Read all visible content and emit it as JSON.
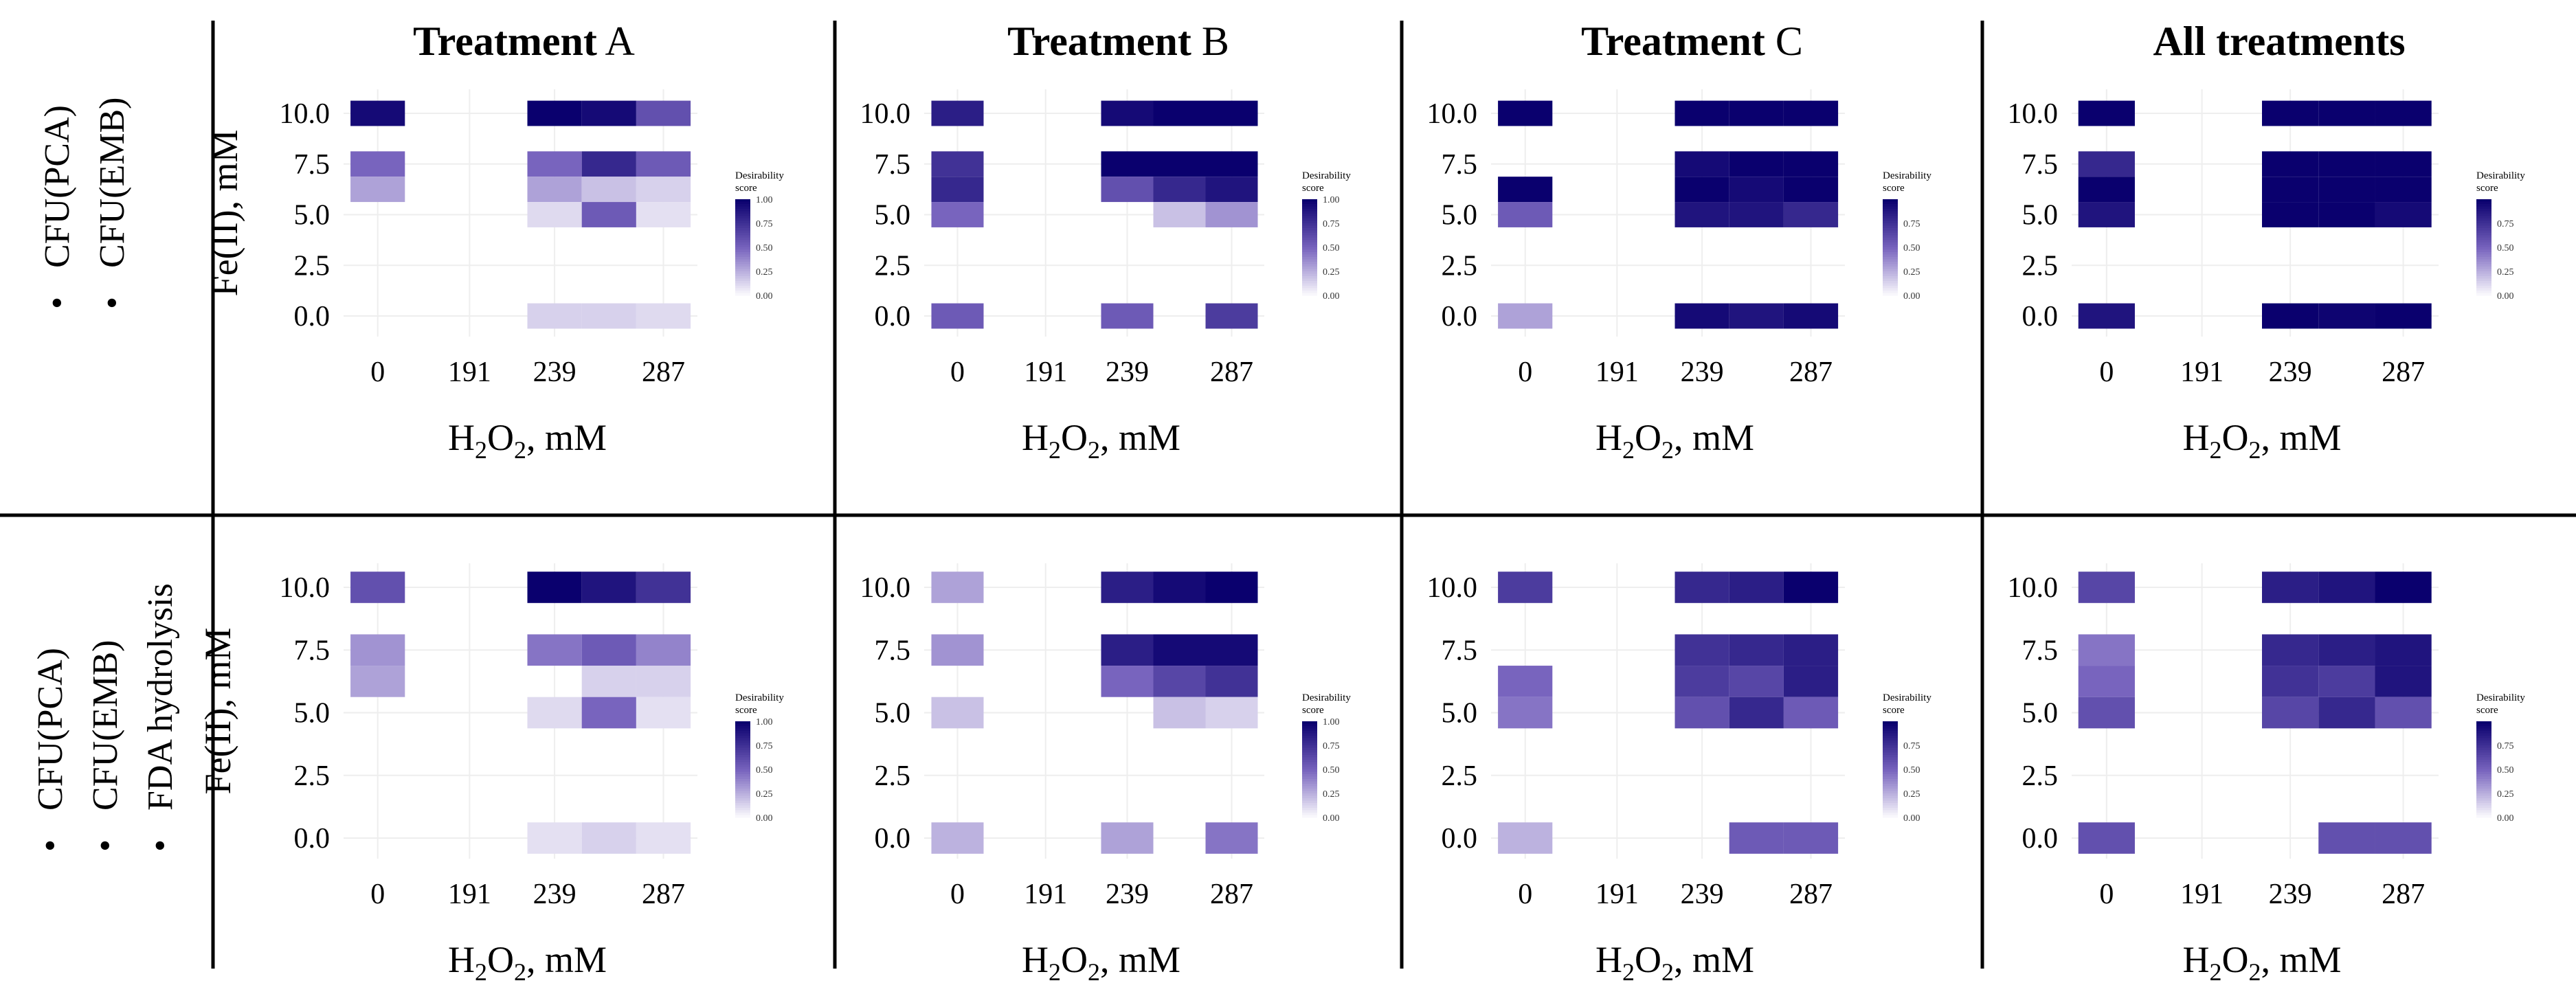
{
  "figure": {
    "rows": [
      {
        "id": "row1",
        "bullets": [
          "CFU(PCA)",
          "CFU(EMB)"
        ]
      },
      {
        "id": "row2",
        "bullets": [
          "CFU(PCA)",
          "CFU(EMB)",
          "FDA hydrolysis"
        ]
      }
    ],
    "bullet_char": "•",
    "columns": [
      {
        "title_bold": "Treatment",
        "title_rest": " A"
      },
      {
        "title_bold": "Treatment",
        "title_rest": " B"
      },
      {
        "title_bold": "Treatment",
        "title_rest": " C"
      },
      {
        "title_bold": "All treatments",
        "title_rest": ""
      }
    ],
    "ylabel": "Fe(II), mM",
    "xlabel_main": "H",
    "xlabel_sub": "2",
    "xlabel_tail": "O",
    "xlabel_sub2": "2",
    "xlabel_unit": ", mM",
    "legend_title_1": "Desirability",
    "legend_title_2": "score",
    "colors": {
      "low": "#ffffff",
      "high": "#0a006e",
      "grid": "#eeeeee",
      "divider": "#000000"
    }
  },
  "chart_data": [
    {
      "type": "heatmap",
      "panel": "row1-A",
      "title": "Treatment A",
      "xlabel": "H2O2, mM",
      "ylabel": "Fe(II), mM",
      "x_ticks": [
        "0",
        "191",
        "239",
        "287"
      ],
      "y_ticks": [
        "0.0",
        "2.5",
        "5.0",
        "7.5",
        "10.0"
      ],
      "legend": {
        "title": "Desirability score",
        "ticks": [
          "0.00",
          "0.25",
          "0.50",
          "0.75",
          "1.00"
        ],
        "range": [
          0,
          1
        ]
      },
      "cells": [
        {
          "x": 0,
          "y": 10.0,
          "v": 0.95
        },
        {
          "x": 0,
          "y": 7.5,
          "v": 0.5
        },
        {
          "x": 0,
          "y": 6.25,
          "v": 0.3
        },
        {
          "x": 239,
          "y": 10.0,
          "v": 1.0
        },
        {
          "x": 263,
          "y": 10.0,
          "v": 0.95
        },
        {
          "x": 287,
          "y": 10.0,
          "v": 0.6
        },
        {
          "x": 239,
          "y": 7.5,
          "v": 0.5
        },
        {
          "x": 263,
          "y": 7.5,
          "v": 0.8
        },
        {
          "x": 287,
          "y": 7.5,
          "v": 0.55
        },
        {
          "x": 239,
          "y": 6.25,
          "v": 0.3
        },
        {
          "x": 263,
          "y": 6.25,
          "v": 0.2
        },
        {
          "x": 287,
          "y": 6.25,
          "v": 0.15
        },
        {
          "x": 239,
          "y": 5.0,
          "v": 0.12
        },
        {
          "x": 263,
          "y": 5.0,
          "v": 0.55
        },
        {
          "x": 287,
          "y": 5.0,
          "v": 0.1
        },
        {
          "x": 239,
          "y": 0.0,
          "v": 0.15
        },
        {
          "x": 263,
          "y": 0.0,
          "v": 0.15
        },
        {
          "x": 287,
          "y": 0.0,
          "v": 0.12
        }
      ]
    },
    {
      "type": "heatmap",
      "panel": "row1-B",
      "title": "Treatment B",
      "xlabel": "H2O2, mM",
      "ylabel": "Fe(II), mM",
      "x_ticks": [
        "0",
        "191",
        "239",
        "287"
      ],
      "y_ticks": [
        "0.0",
        "2.5",
        "5.0",
        "7.5",
        "10.0"
      ],
      "legend": {
        "title": "Desirability score",
        "ticks": [
          "0.00",
          "0.25",
          "0.50",
          "0.75",
          "1.00"
        ],
        "range": [
          0,
          1
        ]
      },
      "cells": [
        {
          "x": 0,
          "y": 10.0,
          "v": 0.85
        },
        {
          "x": 0,
          "y": 7.5,
          "v": 0.75
        },
        {
          "x": 0,
          "y": 6.25,
          "v": 0.8
        },
        {
          "x": 0,
          "y": 5.0,
          "v": 0.5
        },
        {
          "x": 239,
          "y": 10.0,
          "v": 0.95
        },
        {
          "x": 263,
          "y": 10.0,
          "v": 1.0
        },
        {
          "x": 287,
          "y": 10.0,
          "v": 1.0
        },
        {
          "x": 239,
          "y": 7.5,
          "v": 1.0
        },
        {
          "x": 263,
          "y": 7.5,
          "v": 1.0
        },
        {
          "x": 287,
          "y": 7.5,
          "v": 1.0
        },
        {
          "x": 239,
          "y": 6.25,
          "v": 0.6
        },
        {
          "x": 263,
          "y": 6.25,
          "v": 0.8
        },
        {
          "x": 287,
          "y": 6.25,
          "v": 0.9
        },
        {
          "x": 263,
          "y": 5.0,
          "v": 0.2
        },
        {
          "x": 287,
          "y": 5.0,
          "v": 0.35
        },
        {
          "x": 0,
          "y": 0.0,
          "v": 0.55
        },
        {
          "x": 239,
          "y": 0.0,
          "v": 0.55
        },
        {
          "x": 287,
          "y": 0.0,
          "v": 0.7
        }
      ]
    },
    {
      "type": "heatmap",
      "panel": "row1-C",
      "title": "Treatment C",
      "xlabel": "H2O2, mM",
      "ylabel": "Fe(II), mM",
      "x_ticks": [
        "0",
        "191",
        "239",
        "287"
      ],
      "y_ticks": [
        "0.0",
        "2.5",
        "5.0",
        "7.5",
        "10.0"
      ],
      "legend": {
        "title": "Desirability score",
        "ticks": [
          "0.00",
          "0.25",
          "0.50",
          "0.75"
        ],
        "range": [
          0,
          1
        ]
      },
      "cells": [
        {
          "x": 0,
          "y": 10.0,
          "v": 1.0
        },
        {
          "x": 0,
          "y": 6.25,
          "v": 1.0
        },
        {
          "x": 0,
          "y": 5.0,
          "v": 0.55
        },
        {
          "x": 239,
          "y": 10.0,
          "v": 1.0
        },
        {
          "x": 263,
          "y": 10.0,
          "v": 1.0
        },
        {
          "x": 287,
          "y": 10.0,
          "v": 1.0
        },
        {
          "x": 239,
          "y": 7.5,
          "v": 0.95
        },
        {
          "x": 263,
          "y": 7.5,
          "v": 1.0
        },
        {
          "x": 287,
          "y": 7.5,
          "v": 1.0
        },
        {
          "x": 239,
          "y": 6.25,
          "v": 1.0
        },
        {
          "x": 263,
          "y": 6.25,
          "v": 0.95
        },
        {
          "x": 287,
          "y": 6.25,
          "v": 1.0
        },
        {
          "x": 239,
          "y": 5.0,
          "v": 0.9
        },
        {
          "x": 263,
          "y": 5.0,
          "v": 0.9
        },
        {
          "x": 287,
          "y": 5.0,
          "v": 0.8
        },
        {
          "x": 0,
          "y": 0.0,
          "v": 0.3
        },
        {
          "x": 239,
          "y": 0.0,
          "v": 0.95
        },
        {
          "x": 263,
          "y": 0.0,
          "v": 0.9
        },
        {
          "x": 287,
          "y": 0.0,
          "v": 0.95
        }
      ]
    },
    {
      "type": "heatmap",
      "panel": "row1-All",
      "title": "All treatments",
      "xlabel": "H2O2, mM",
      "ylabel": "Fe(II), mM",
      "x_ticks": [
        "0",
        "191",
        "239",
        "287"
      ],
      "y_ticks": [
        "0.0",
        "2.5",
        "5.0",
        "7.5",
        "10.0"
      ],
      "legend": {
        "title": "Desirability score",
        "ticks": [
          "0.00",
          "0.25",
          "0.50",
          "0.75"
        ],
        "range": [
          0,
          1
        ]
      },
      "cells": [
        {
          "x": 0,
          "y": 10.0,
          "v": 1.0
        },
        {
          "x": 0,
          "y": 7.5,
          "v": 0.8
        },
        {
          "x": 0,
          "y": 6.25,
          "v": 1.0
        },
        {
          "x": 0,
          "y": 5.0,
          "v": 0.9
        },
        {
          "x": 239,
          "y": 10.0,
          "v": 1.0
        },
        {
          "x": 263,
          "y": 10.0,
          "v": 1.0
        },
        {
          "x": 287,
          "y": 10.0,
          "v": 1.0
        },
        {
          "x": 239,
          "y": 7.5,
          "v": 1.0
        },
        {
          "x": 263,
          "y": 7.5,
          "v": 1.0
        },
        {
          "x": 287,
          "y": 7.5,
          "v": 1.0
        },
        {
          "x": 239,
          "y": 6.25,
          "v": 1.0
        },
        {
          "x": 263,
          "y": 6.25,
          "v": 1.0
        },
        {
          "x": 287,
          "y": 6.25,
          "v": 1.0
        },
        {
          "x": 239,
          "y": 5.0,
          "v": 1.0
        },
        {
          "x": 263,
          "y": 5.0,
          "v": 1.0
        },
        {
          "x": 287,
          "y": 5.0,
          "v": 0.95
        },
        {
          "x": 0,
          "y": 0.0,
          "v": 0.9
        },
        {
          "x": 239,
          "y": 0.0,
          "v": 1.0
        },
        {
          "x": 263,
          "y": 0.0,
          "v": 0.98
        },
        {
          "x": 287,
          "y": 0.0,
          "v": 1.0
        }
      ]
    },
    {
      "type": "heatmap",
      "panel": "row2-A",
      "title": "Treatment A",
      "xlabel": "H2O2, mM",
      "ylabel": "Fe(II), mM",
      "x_ticks": [
        "0",
        "191",
        "239",
        "287"
      ],
      "y_ticks": [
        "0.0",
        "2.5",
        "5.0",
        "7.5",
        "10.0"
      ],
      "legend": {
        "title": "Desirability score",
        "ticks": [
          "0.00",
          "0.25",
          "0.50",
          "0.75",
          "1.00"
        ],
        "range": [
          0,
          1
        ]
      },
      "cells": [
        {
          "x": 0,
          "y": 10.0,
          "v": 0.6
        },
        {
          "x": 0,
          "y": 7.5,
          "v": 0.35
        },
        {
          "x": 0,
          "y": 6.25,
          "v": 0.3
        },
        {
          "x": 239,
          "y": 10.0,
          "v": 1.0
        },
        {
          "x": 263,
          "y": 10.0,
          "v": 0.9
        },
        {
          "x": 287,
          "y": 10.0,
          "v": 0.75
        },
        {
          "x": 239,
          "y": 7.5,
          "v": 0.45
        },
        {
          "x": 263,
          "y": 7.5,
          "v": 0.55
        },
        {
          "x": 287,
          "y": 7.5,
          "v": 0.4
        },
        {
          "x": 263,
          "y": 6.25,
          "v": 0.15
        },
        {
          "x": 287,
          "y": 6.25,
          "v": 0.15
        },
        {
          "x": 239,
          "y": 5.0,
          "v": 0.12
        },
        {
          "x": 263,
          "y": 5.0,
          "v": 0.5
        },
        {
          "x": 287,
          "y": 5.0,
          "v": 0.1
        },
        {
          "x": 239,
          "y": 0.0,
          "v": 0.1
        },
        {
          "x": 263,
          "y": 0.0,
          "v": 0.15
        },
        {
          "x": 287,
          "y": 0.0,
          "v": 0.1
        }
      ]
    },
    {
      "type": "heatmap",
      "panel": "row2-B",
      "title": "Treatment B",
      "xlabel": "H2O2, mM",
      "ylabel": "Fe(II), mM",
      "x_ticks": [
        "0",
        "191",
        "239",
        "287"
      ],
      "y_ticks": [
        "0.0",
        "2.5",
        "5.0",
        "7.5",
        "10.0"
      ],
      "legend": {
        "title": "Desirability score",
        "ticks": [
          "0.00",
          "0.25",
          "0.50",
          "0.75",
          "1.00"
        ],
        "range": [
          0,
          1
        ]
      },
      "cells": [
        {
          "x": 0,
          "y": 10.0,
          "v": 0.3
        },
        {
          "x": 0,
          "y": 7.5,
          "v": 0.35
        },
        {
          "x": 0,
          "y": 5.0,
          "v": 0.2
        },
        {
          "x": 239,
          "y": 10.0,
          "v": 0.85
        },
        {
          "x": 263,
          "y": 10.0,
          "v": 0.95
        },
        {
          "x": 287,
          "y": 10.0,
          "v": 1.0
        },
        {
          "x": 239,
          "y": 7.5,
          "v": 0.85
        },
        {
          "x": 263,
          "y": 7.5,
          "v": 0.95
        },
        {
          "x": 287,
          "y": 7.5,
          "v": 0.95
        },
        {
          "x": 239,
          "y": 6.25,
          "v": 0.5
        },
        {
          "x": 263,
          "y": 6.25,
          "v": 0.65
        },
        {
          "x": 287,
          "y": 6.25,
          "v": 0.75
        },
        {
          "x": 263,
          "y": 5.0,
          "v": 0.2
        },
        {
          "x": 287,
          "y": 5.0,
          "v": 0.15
        },
        {
          "x": 0,
          "y": 0.0,
          "v": 0.25
        },
        {
          "x": 239,
          "y": 0.0,
          "v": 0.3
        },
        {
          "x": 287,
          "y": 0.0,
          "v": 0.45
        }
      ]
    },
    {
      "type": "heatmap",
      "panel": "row2-C",
      "title": "Treatment C",
      "xlabel": "H2O2, mM",
      "ylabel": "Fe(II), mM",
      "x_ticks": [
        "0",
        "191",
        "239",
        "287"
      ],
      "y_ticks": [
        "0.0",
        "2.5",
        "5.0",
        "7.5",
        "10.0"
      ],
      "legend": {
        "title": "Desirability score",
        "ticks": [
          "0.00",
          "0.25",
          "0.50",
          "0.75"
        ],
        "range": [
          0,
          1
        ]
      },
      "cells": [
        {
          "x": 0,
          "y": 10.0,
          "v": 0.7
        },
        {
          "x": 0,
          "y": 6.25,
          "v": 0.5
        },
        {
          "x": 0,
          "y": 5.0,
          "v": 0.45
        },
        {
          "x": 239,
          "y": 10.0,
          "v": 0.8
        },
        {
          "x": 263,
          "y": 10.0,
          "v": 0.85
        },
        {
          "x": 287,
          "y": 10.0,
          "v": 1.0
        },
        {
          "x": 239,
          "y": 7.5,
          "v": 0.75
        },
        {
          "x": 263,
          "y": 7.5,
          "v": 0.8
        },
        {
          "x": 287,
          "y": 7.5,
          "v": 0.85
        },
        {
          "x": 239,
          "y": 6.25,
          "v": 0.7
        },
        {
          "x": 263,
          "y": 6.25,
          "v": 0.65
        },
        {
          "x": 287,
          "y": 6.25,
          "v": 0.85
        },
        {
          "x": 239,
          "y": 5.0,
          "v": 0.6
        },
        {
          "x": 263,
          "y": 5.0,
          "v": 0.8
        },
        {
          "x": 287,
          "y": 5.0,
          "v": 0.55
        },
        {
          "x": 0,
          "y": 0.0,
          "v": 0.25
        },
        {
          "x": 263,
          "y": 0.0,
          "v": 0.55
        },
        {
          "x": 287,
          "y": 0.0,
          "v": 0.55
        }
      ]
    },
    {
      "type": "heatmap",
      "panel": "row2-All",
      "title": "All treatments",
      "xlabel": "H2O2, mM",
      "ylabel": "Fe(II), mM",
      "x_ticks": [
        "0",
        "191",
        "239",
        "287"
      ],
      "y_ticks": [
        "0.0",
        "2.5",
        "5.0",
        "7.5",
        "10.0"
      ],
      "legend": {
        "title": "Desirability score",
        "ticks": [
          "0.00",
          "0.25",
          "0.50",
          "0.75"
        ],
        "range": [
          0,
          1
        ]
      },
      "cells": [
        {
          "x": 0,
          "y": 10.0,
          "v": 0.65
        },
        {
          "x": 0,
          "y": 7.5,
          "v": 0.45
        },
        {
          "x": 0,
          "y": 6.25,
          "v": 0.5
        },
        {
          "x": 0,
          "y": 5.0,
          "v": 0.6
        },
        {
          "x": 239,
          "y": 10.0,
          "v": 0.85
        },
        {
          "x": 263,
          "y": 10.0,
          "v": 0.9
        },
        {
          "x": 287,
          "y": 10.0,
          "v": 1.0
        },
        {
          "x": 239,
          "y": 7.5,
          "v": 0.8
        },
        {
          "x": 263,
          "y": 7.5,
          "v": 0.85
        },
        {
          "x": 287,
          "y": 7.5,
          "v": 0.9
        },
        {
          "x": 239,
          "y": 6.25,
          "v": 0.75
        },
        {
          "x": 263,
          "y": 6.25,
          "v": 0.7
        },
        {
          "x": 287,
          "y": 6.25,
          "v": 0.9
        },
        {
          "x": 239,
          "y": 5.0,
          "v": 0.65
        },
        {
          "x": 263,
          "y": 5.0,
          "v": 0.8
        },
        {
          "x": 287,
          "y": 5.0,
          "v": 0.6
        },
        {
          "x": 0,
          "y": 0.0,
          "v": 0.6
        },
        {
          "x": 263,
          "y": 0.0,
          "v": 0.6
        },
        {
          "x": 287,
          "y": 0.0,
          "v": 0.6
        }
      ]
    }
  ]
}
